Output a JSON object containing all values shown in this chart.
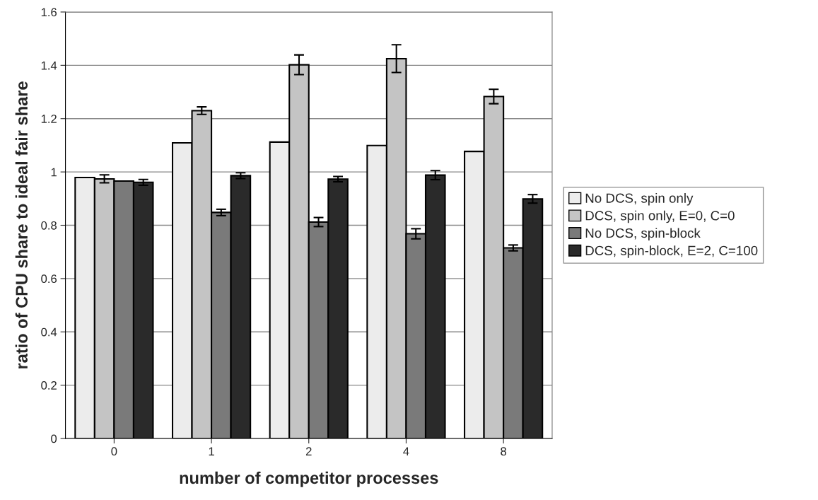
{
  "chart_data": {
    "type": "bar",
    "xlabel": "number of competitor processes",
    "ylabel": "ratio of CPU share to ideal fair share",
    "categories": [
      "0",
      "1",
      "2",
      "4",
      "8"
    ],
    "series": [
      {
        "name": "No DCS, spin only",
        "color": "#ececec",
        "values": [
          0.979,
          1.109,
          1.112,
          1.099,
          1.077
        ]
      },
      {
        "name": "DCS, spin only, E=0, C=0",
        "color": "#c4c4c4",
        "values": [
          0.974,
          1.23,
          1.402,
          1.425,
          1.283
        ],
        "errors": [
          0.015,
          0.014,
          0.037,
          0.052,
          0.027
        ]
      },
      {
        "name": "No DCS, spin-block",
        "color": "#7a7a7a",
        "values": [
          0.966,
          0.848,
          0.812,
          0.768,
          0.715
        ],
        "errors": [
          null,
          0.012,
          0.017,
          0.019,
          0.011
        ]
      },
      {
        "name": "DCS, spin-block, E=2, C=100",
        "color": "#2a2a2a",
        "values": [
          0.961,
          0.986,
          0.973,
          0.988,
          0.899
        ],
        "errors": [
          0.011,
          0.011,
          0.01,
          0.017,
          0.016
        ]
      }
    ],
    "ylim": [
      0,
      1.6
    ],
    "yticks": [
      0,
      0.2,
      0.4,
      0.6,
      0.8,
      1,
      1.2,
      1.4,
      1.6
    ],
    "grid": "y",
    "legend": "right"
  }
}
